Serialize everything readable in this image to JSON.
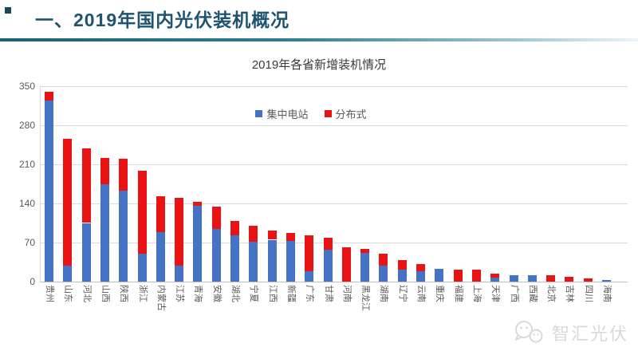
{
  "header": {
    "title": "一、2019年国内光伏装机概况",
    "accent_color": "#1b6173",
    "bullet_color": "#17485c"
  },
  "chart_data": {
    "type": "bar",
    "stacked": true,
    "title": "2019年各省新增装机情况",
    "categories": [
      "贵州",
      "山东",
      "河北",
      "山西",
      "陕西",
      "浙江",
      "内蒙古",
      "江苏",
      "青海",
      "安徽",
      "湖北",
      "宁夏",
      "江西",
      "新疆",
      "广东",
      "甘肃",
      "河南",
      "黑龙江",
      "湖南",
      "辽宁",
      "云南",
      "重庆",
      "福建",
      "上海",
      "天津",
      "广西",
      "西藏",
      "北京",
      "吉林",
      "四川",
      "海南"
    ],
    "series": [
      {
        "name": "集中电站",
        "color": "#4472c4",
        "values": [
          325,
          28,
          105,
          174,
          163,
          50,
          88,
          28,
          136,
          94,
          83,
          72,
          75,
          73,
          19,
          57,
          0,
          51,
          29,
          21,
          19,
          23,
          0,
          0,
          7,
          11,
          11,
          0,
          0,
          0,
          3
        ]
      },
      {
        "name": "分布式",
        "color": "#e91313",
        "values": [
          15,
          228,
          133,
          48,
          57,
          148,
          65,
          122,
          7,
          41,
          26,
          28,
          16,
          14,
          64,
          21,
          62,
          7,
          21,
          18,
          13,
          0,
          22,
          21,
          7,
          0,
          0,
          11,
          9,
          6,
          0
        ]
      }
    ],
    "ylim": [
      0,
      350
    ],
    "yticks": [
      0,
      70,
      140,
      210,
      280,
      350
    ],
    "grid": true,
    "legend_position": "top-center-inside",
    "xlabel": "",
    "ylabel": ""
  },
  "watermark": {
    "text": "智汇光伏",
    "icon": "wechat-icon"
  }
}
